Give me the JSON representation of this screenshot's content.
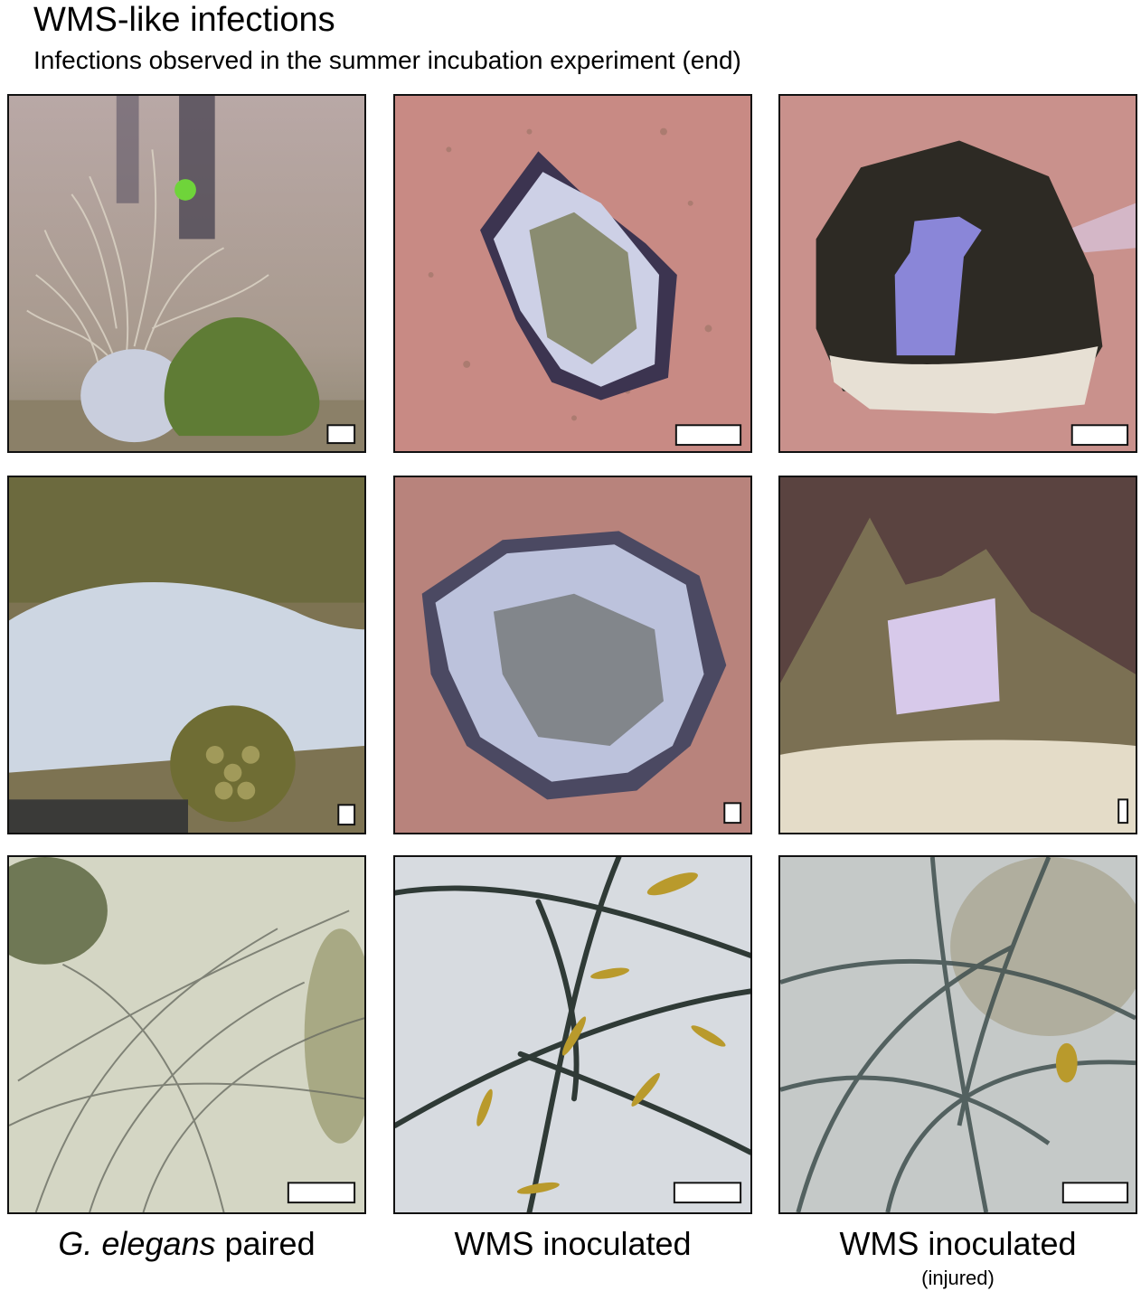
{
  "figure": {
    "title": "WMS-like infections",
    "subtitle": "Infections observed in the summer incubation experiment (end)"
  },
  "columns": [
    {
      "label_italic": "G. elegans",
      "label_rest": " paired",
      "sublabel": ""
    },
    {
      "label_italic": "",
      "label_rest": "WMS inoculated",
      "sublabel": ""
    },
    {
      "label_italic": "",
      "label_rest": "WMS inoculated",
      "sublabel": "(injured)"
    }
  ],
  "colors": {
    "tank_pink": "#c98a87",
    "microscope_bg": "#d9dde0",
    "mat_white": "#cfd3e8",
    "coral_green": "#5e7a36",
    "filament": "#2f3a36",
    "diatom": "#b99a2c"
  }
}
